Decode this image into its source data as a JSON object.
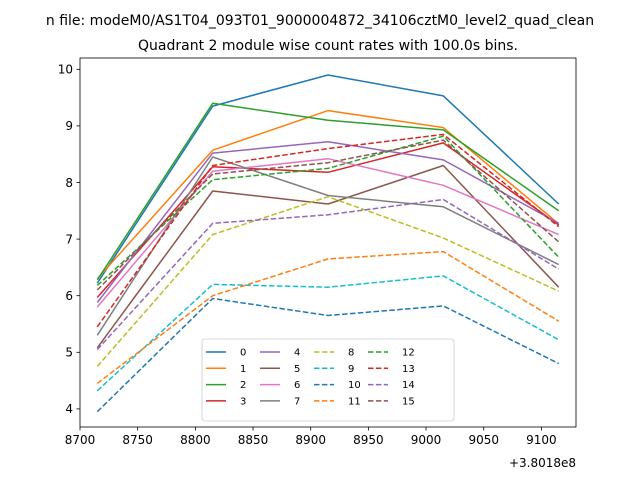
{
  "chart_data": {
    "type": "line",
    "suptitle": "n file: modeM0/AS1T04_093T01_9000004872_34106cztM0_level2_quad_clean",
    "title": "Quadrant 2 module wise count rates with 100.0s bins.",
    "xlabel": "",
    "ylabel": "",
    "x_offset_label": "+3.8018e8",
    "x": [
      8715,
      8815,
      8915,
      9015,
      9115
    ],
    "xlim": [
      8700,
      9130
    ],
    "ylim": [
      3.68,
      10.2
    ],
    "xticks": [
      8700,
      8750,
      8800,
      8850,
      8900,
      8950,
      9000,
      9050,
      9100
    ],
    "yticks": [
      4,
      5,
      6,
      7,
      8,
      9,
      10
    ],
    "legend_loc": "lower center",
    "legend_ncol": 4,
    "series": [
      {
        "name": "0",
        "color": "#1f77b4",
        "style": "solid",
        "values": [
          6.22,
          9.35,
          9.9,
          9.53,
          7.62
        ]
      },
      {
        "name": "1",
        "color": "#ff7f0e",
        "style": "solid",
        "values": [
          6.3,
          8.57,
          9.27,
          8.97,
          7.27
        ]
      },
      {
        "name": "2",
        "color": "#2ca02c",
        "style": "solid",
        "values": [
          6.28,
          9.4,
          9.1,
          8.93,
          7.5
        ]
      },
      {
        "name": "3",
        "color": "#d62728",
        "style": "solid",
        "values": [
          5.97,
          8.28,
          8.18,
          8.7,
          7.25
        ]
      },
      {
        "name": "4",
        "color": "#9467bd",
        "style": "solid",
        "values": [
          5.88,
          8.52,
          8.72,
          8.4,
          7.28
        ]
      },
      {
        "name": "5",
        "color": "#8c564b",
        "style": "solid",
        "values": [
          5.08,
          7.85,
          7.62,
          8.3,
          6.15
        ]
      },
      {
        "name": "6",
        "color": "#e377c2",
        "style": "solid",
        "values": [
          5.8,
          8.2,
          8.42,
          7.95,
          7.08
        ]
      },
      {
        "name": "7",
        "color": "#7f7f7f",
        "style": "solid",
        "values": [
          5.3,
          8.45,
          7.77,
          7.57,
          6.55
        ]
      },
      {
        "name": "8",
        "color": "#bcbd22",
        "style": "dashed",
        "values": [
          4.75,
          7.08,
          7.75,
          7.02,
          6.08
        ]
      },
      {
        "name": "9",
        "color": "#17becf",
        "style": "dashed",
        "values": [
          4.32,
          6.2,
          6.15,
          6.35,
          5.22
        ]
      },
      {
        "name": "10",
        "color": "#1f77b4",
        "style": "dashed",
        "values": [
          3.95,
          5.95,
          5.65,
          5.82,
          4.8
        ]
      },
      {
        "name": "11",
        "color": "#ff7f0e",
        "style": "dashed",
        "values": [
          4.45,
          6.0,
          6.65,
          6.78,
          5.55
        ]
      },
      {
        "name": "12",
        "color": "#2ca02c",
        "style": "dashed",
        "values": [
          6.18,
          8.05,
          8.25,
          8.82,
          6.68
        ]
      },
      {
        "name": "13",
        "color": "#d62728",
        "style": "dashed",
        "values": [
          5.45,
          8.3,
          8.6,
          8.85,
          7.22
        ]
      },
      {
        "name": "14",
        "color": "#9467bd",
        "style": "dashed",
        "values": [
          5.05,
          7.28,
          7.43,
          7.7,
          6.47
        ]
      },
      {
        "name": "15",
        "color": "#8c564b",
        "style": "dashed",
        "values": [
          6.1,
          8.15,
          8.35,
          8.75,
          6.95
        ]
      }
    ]
  }
}
